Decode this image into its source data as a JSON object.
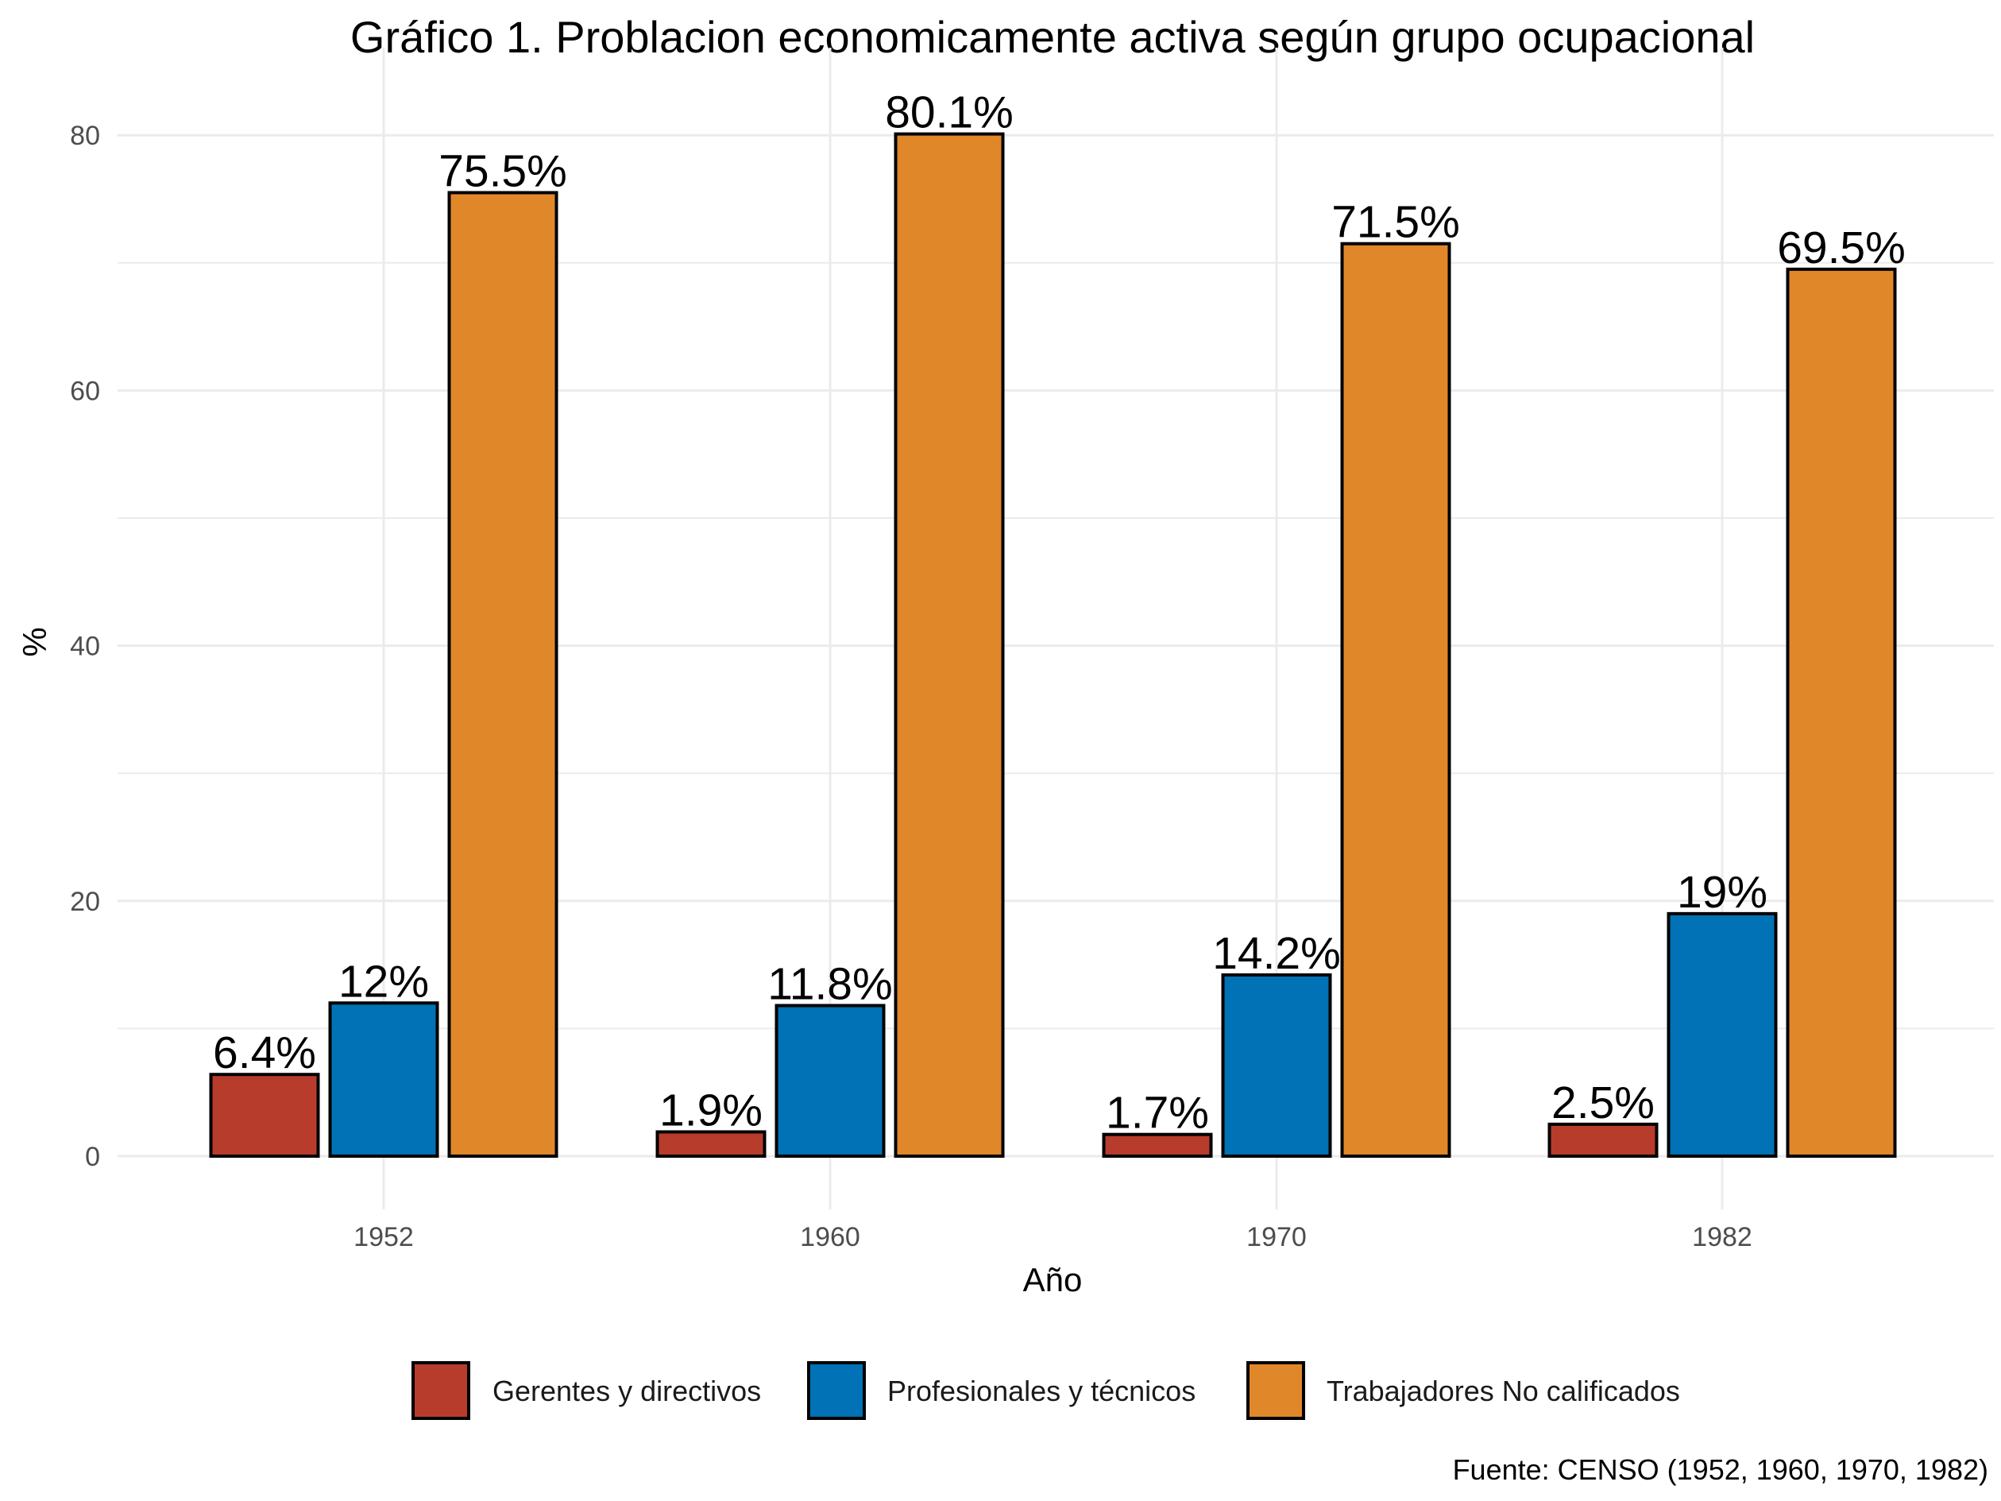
{
  "chart_data": {
    "type": "bar",
    "title": "Gráfico 1. Problacion economicamente activa según grupo ocupacional",
    "xlabel": "Año",
    "ylabel": "%",
    "caption": "Fuente: CENSO (1952, 1960, 1970, 1982)",
    "categories": [
      "1952",
      "1960",
      "1970",
      "1982"
    ],
    "ylim": [
      0,
      84
    ],
    "yticks": [
      0,
      20,
      40,
      60,
      80
    ],
    "grid": true,
    "legend_position": "bottom",
    "series": [
      {
        "name": "Gerentes y directivos",
        "color": "#B83C2B",
        "values": [
          6.4,
          1.9,
          1.7,
          2.5
        ],
        "labels": [
          "6.4%",
          "1.9%",
          "1.7%",
          "2.5%"
        ]
      },
      {
        "name": "Profesionales y técnicos",
        "color": "#0072B5",
        "values": [
          12,
          11.8,
          14.2,
          19
        ],
        "labels": [
          "12%",
          "11.8%",
          "14.2%",
          "19%"
        ]
      },
      {
        "name": "Trabajadores No calificados",
        "color": "#E0872A",
        "values": [
          75.5,
          80.1,
          71.5,
          69.5
        ],
        "labels": [
          "75.5%",
          "80.1%",
          "71.5%",
          "69.5%"
        ]
      }
    ]
  }
}
